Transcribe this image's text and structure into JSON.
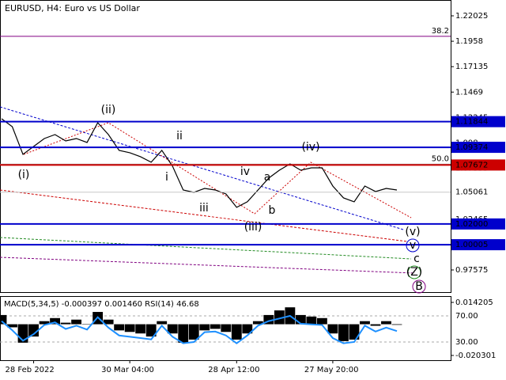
{
  "chart_data": [
    {
      "type": "line",
      "title": "EURUSD, H4:  Euro vs US Dollar",
      "categories": [
        null,
        null,
        null,
        "28 Feb 2022",
        null,
        null,
        null,
        null,
        null,
        null,
        null,
        null,
        "30 Mar 04:00",
        null,
        null,
        null,
        null,
        null,
        null,
        null,
        null,
        null,
        "28 Apr 12:00",
        null,
        null,
        null,
        null,
        null,
        null,
        null,
        null,
        "27 May 20:00",
        null,
        null,
        null,
        null,
        null,
        null
      ],
      "series": [
        {
          "name": "EURUSD",
          "color": "#000000",
          "values": [
            1.1212,
            1.1136,
            1.087,
            1.0946,
            1.1022,
            1.106,
            1.0999,
            1.1022,
            1.0984,
            1.1174,
            1.106,
            1.0908,
            1.0885,
            1.0847,
            1.0794,
            1.0908,
            1.0756,
            1.0527,
            1.0504,
            1.0542,
            1.0527,
            1.0489,
            1.036,
            1.0413,
            1.0527,
            1.0641,
            1.0717,
            1.0778,
            1.0717,
            1.074,
            1.074,
            1.0565,
            1.0451,
            1.0413,
            1.0565,
            1.0512,
            1.0542,
            1.0527
          ]
        }
      ],
      "ylim": [
        0.95366,
        1.23548
      ],
      "yticks": [
        1.22025,
        1.1958,
        1.17135,
        1.1469,
        1.12245,
        1.098,
        1.07355,
        1.0491,
        1.02465,
        1.0002,
        0.97575
      ],
      "levels": [
        {
          "value": 1.11844,
          "label": "1.11844",
          "color": "#0000cc"
        },
        {
          "value": 1.09374,
          "label": "1.09374",
          "color": "#0000cc"
        },
        {
          "value": 1.07672,
          "label": "1.07672",
          "color": "#cc0000"
        },
        {
          "value": 1.05061,
          "label": "1.05061",
          "color": "#c8c8c8"
        },
        {
          "value": 1.02,
          "label": "1.02000",
          "color": "#0000cc"
        },
        {
          "value": 1.00005,
          "label": "1.00005",
          "color": "#0000cc"
        }
      ],
      "fib": [
        {
          "value": 1.2005,
          "label": "38.2",
          "color": "#800080"
        },
        {
          "value": 1.0775,
          "label": "50.0",
          "color": "#999999"
        }
      ],
      "annotations": [
        {
          "text": "(i)",
          "color": "#cc0000"
        },
        {
          "text": "(ii)",
          "color": "#cc0000"
        },
        {
          "text": "ii",
          "color": "#777777"
        },
        {
          "text": "i",
          "color": "#777777"
        },
        {
          "text": "iii",
          "color": "#777777"
        },
        {
          "text": "iv",
          "color": "#777777"
        },
        {
          "text": "a",
          "color": "#777777"
        },
        {
          "text": "b",
          "color": "#777777"
        },
        {
          "text": "(iii)",
          "color": "#cc0000"
        },
        {
          "text": "(iv)",
          "color": "#cc0000"
        },
        {
          "text": "(v)",
          "color": "#cc0000"
        },
        {
          "text": "v",
          "color": "#0000cc"
        },
        {
          "text": "c",
          "color": "#a0522d"
        },
        {
          "text": "(Z)",
          "color": "#228b22"
        },
        {
          "text": "B",
          "color": "#800080"
        }
      ]
    },
    {
      "type": "bar",
      "title": "MACD(5,34,5) -0.000397 0.001460 RSI(14) 46.68",
      "values": [
        0.006,
        -0.002,
        -0.012,
        -0.008,
        0.002,
        0.004,
        0.001,
        0.003,
        0.0,
        0.008,
        0.003,
        -0.004,
        -0.005,
        -0.006,
        -0.008,
        0.002,
        -0.006,
        -0.012,
        -0.01,
        -0.004,
        -0.003,
        -0.005,
        -0.01,
        -0.006,
        0.002,
        0.006,
        0.009,
        0.011,
        0.006,
        0.005,
        0.004,
        -0.006,
        -0.011,
        -0.01,
        0.002,
        -0.001,
        0.002,
        -0.000397
      ],
      "ylim": [
        -0.0234,
        0.0178
      ],
      "yticks": [
        0.014205,
        -0.020301
      ],
      "rsi": {
        "name": "RSI(14)",
        "color": "#1e90ff",
        "values": [
          62,
          48,
          32,
          42,
          56,
          60,
          50,
          55,
          49,
          68,
          52,
          40,
          38,
          36,
          34,
          55,
          38,
          28,
          30,
          45,
          46,
          40,
          28,
          40,
          55,
          62,
          66,
          70,
          58,
          57,
          56,
          36,
          28,
          30,
          55,
          46,
          52,
          46.68
        ]
      },
      "y2lim": [
        2.1,
        99.1
      ],
      "y2ticks": [
        {
          "value": 70,
          "label": "70.00"
        },
        {
          "value": 30,
          "label": "30.00"
        }
      ]
    }
  ]
}
